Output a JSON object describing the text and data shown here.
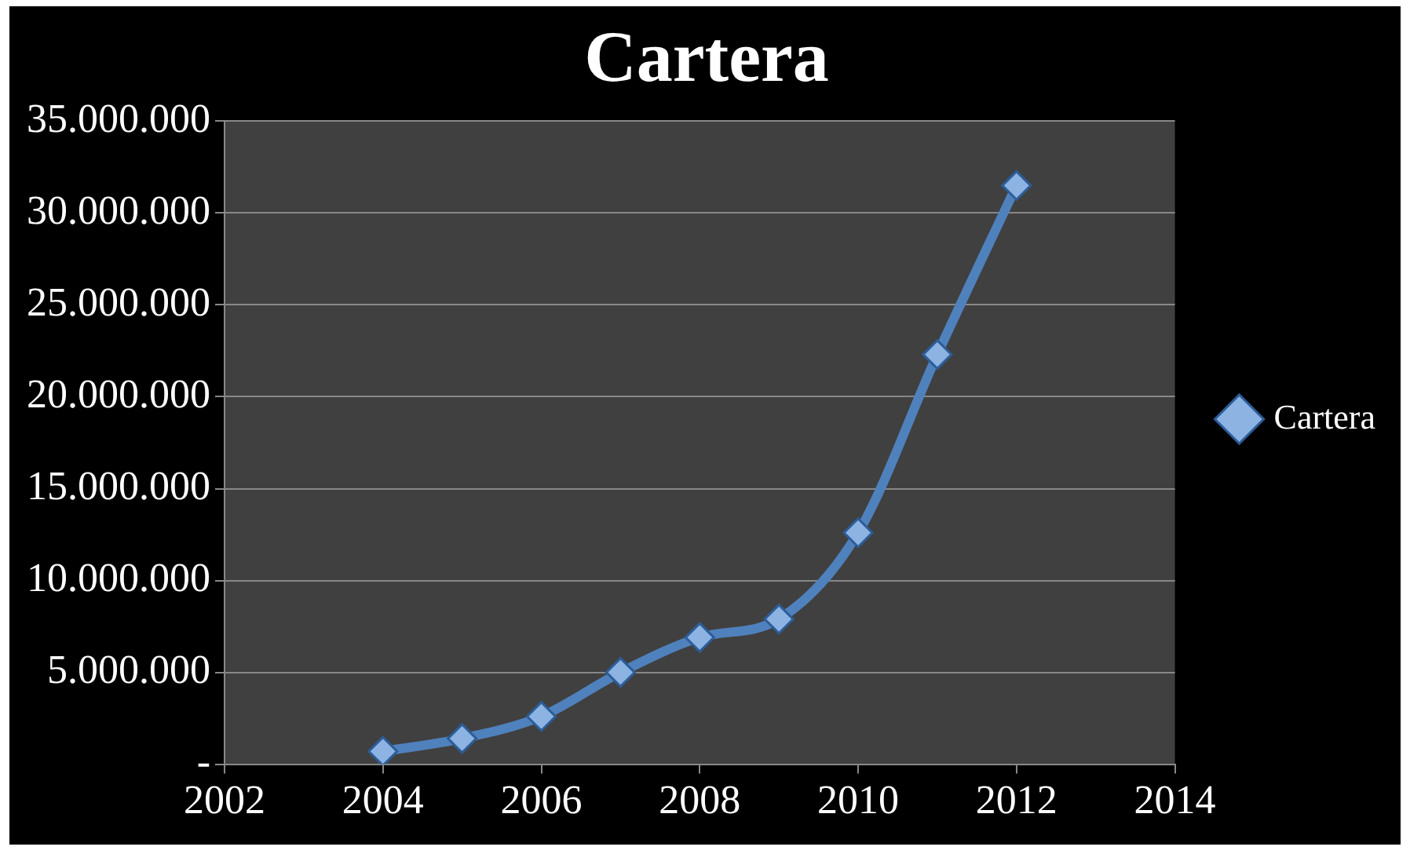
{
  "chart_data": {
    "type": "line",
    "title": "Cartera",
    "x": [
      2004,
      2005,
      2006,
      2007,
      2008,
      2009,
      2010,
      2011,
      2012
    ],
    "series": [
      {
        "name": "Cartera",
        "color": "#4f81bd",
        "values": [
          700000,
          1400000,
          2600000,
          5000000,
          6900000,
          7900000,
          12600000,
          22300000,
          31500000
        ]
      }
    ],
    "xlim": [
      2002,
      2014
    ],
    "xticks": [
      2002,
      2004,
      2006,
      2008,
      2010,
      2012,
      2014
    ],
    "ylim": [
      0,
      35000000
    ],
    "yticks": [
      {
        "value": 0,
        "label": "-"
      },
      {
        "value": 5000000,
        "label": "5.000.000"
      },
      {
        "value": 10000000,
        "label": "10.000.000"
      },
      {
        "value": 15000000,
        "label": "15.000.000"
      },
      {
        "value": 20000000,
        "label": "20.000.000"
      },
      {
        "value": 25000000,
        "label": "25.000.000"
      },
      {
        "value": 30000000,
        "label": "30.000.000"
      },
      {
        "value": 35000000,
        "label": "35.000.000"
      }
    ],
    "grid": "y",
    "legend": "right",
    "marker": "diamond",
    "line_style": "solid"
  }
}
